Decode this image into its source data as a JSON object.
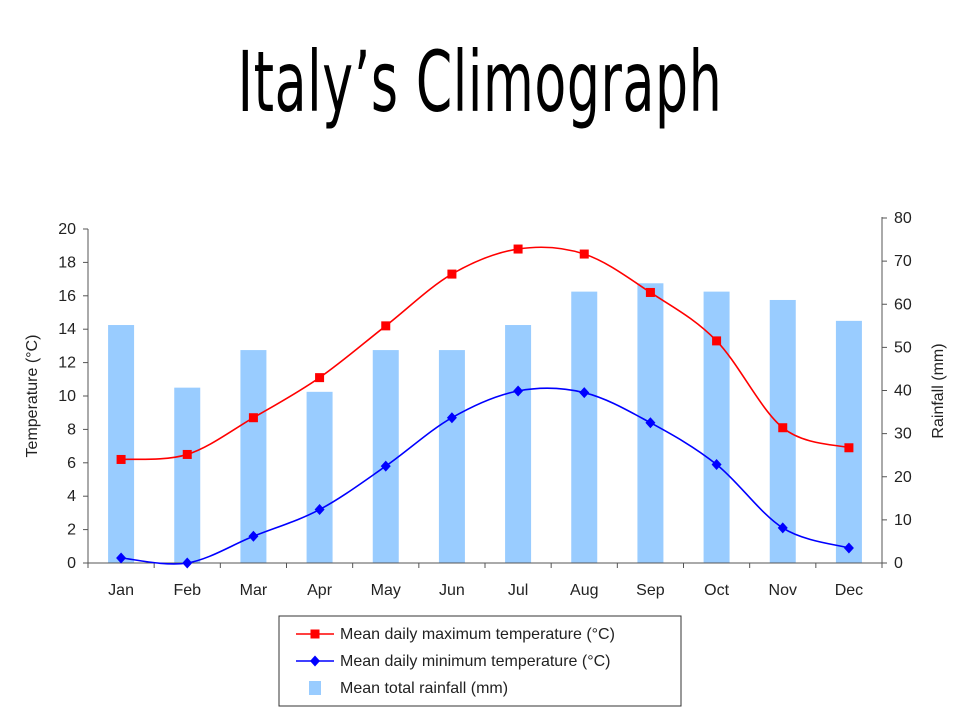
{
  "slide": {
    "title": "Italy’s Climograph"
  },
  "chart_data": {
    "type": "bar+line",
    "categories": [
      "Jan",
      "Feb",
      "Mar",
      "Apr",
      "May",
      "Jun",
      "Jul",
      "Aug",
      "Sep",
      "Oct",
      "Nov",
      "Dec"
    ],
    "y_left": {
      "label": "Temperature (°C)",
      "min": 0,
      "max": 20,
      "step": 2
    },
    "y_right": {
      "label": "Rainfall (mm)",
      "min": 0,
      "max": 80,
      "step": 10
    },
    "series": [
      {
        "name": "Mean daily maximum temperature (°C)",
        "axis": "left",
        "kind": "line",
        "marker": "square",
        "color": "#ff0000",
        "values": [
          6.2,
          6.5,
          8.7,
          11.1,
          14.2,
          17.3,
          18.8,
          18.5,
          16.2,
          13.3,
          8.1,
          6.9
        ]
      },
      {
        "name": "Mean daily minimum temperature (°C)",
        "axis": "left",
        "kind": "line",
        "marker": "diamond",
        "color": "#0000ff",
        "values": [
          0.3,
          0.0,
          1.6,
          3.2,
          5.8,
          8.7,
          10.3,
          10.2,
          8.4,
          5.9,
          2.1,
          0.9
        ]
      },
      {
        "name": "Mean total rainfall (mm)",
        "axis": "right",
        "kind": "bar",
        "color": "#99ccff",
        "values": [
          57,
          42,
          51,
          41,
          51,
          51,
          57,
          65,
          67,
          65,
          63,
          58
        ]
      }
    ],
    "legend_position": "bottom",
    "grid": false
  }
}
